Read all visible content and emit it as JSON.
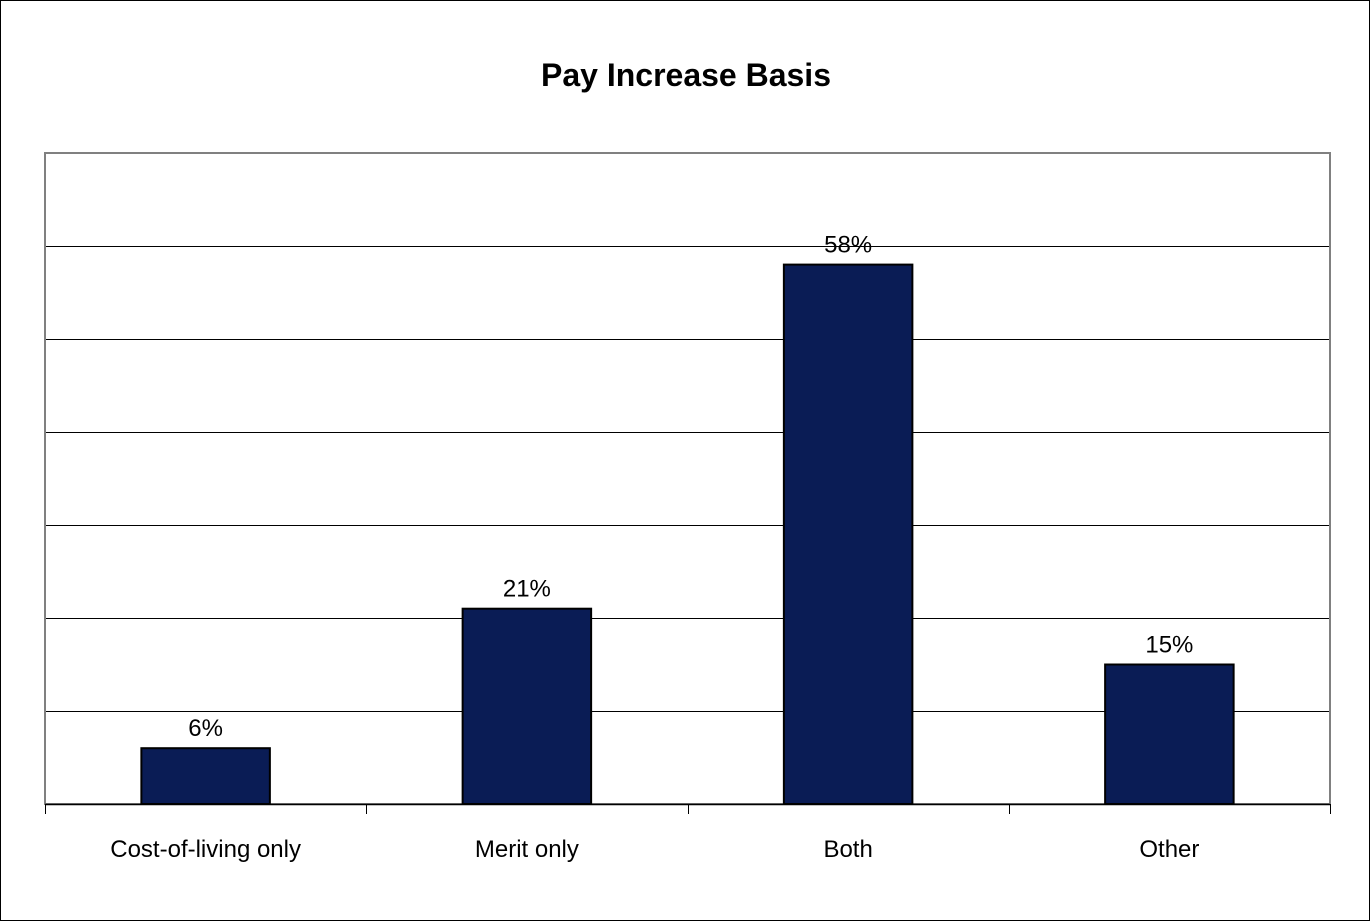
{
  "chart_data": {
    "type": "bar",
    "title": "Pay Increase Basis",
    "categories": [
      "Cost-of-living only",
      "Merit only",
      "Both",
      "Other"
    ],
    "values": [
      6,
      21,
      58,
      15
    ],
    "data_labels": [
      "6%",
      "21%",
      "58%",
      "15%"
    ],
    "ylim": [
      0,
      70
    ],
    "ytick_step": 10,
    "grid": true,
    "legend": "none",
    "xlabel": "",
    "ylabel": ""
  },
  "colors": {
    "bar_fill": "#0a1c55",
    "bar_stroke": "#000000",
    "grid": "#000000",
    "plot_border": "#808080"
  }
}
